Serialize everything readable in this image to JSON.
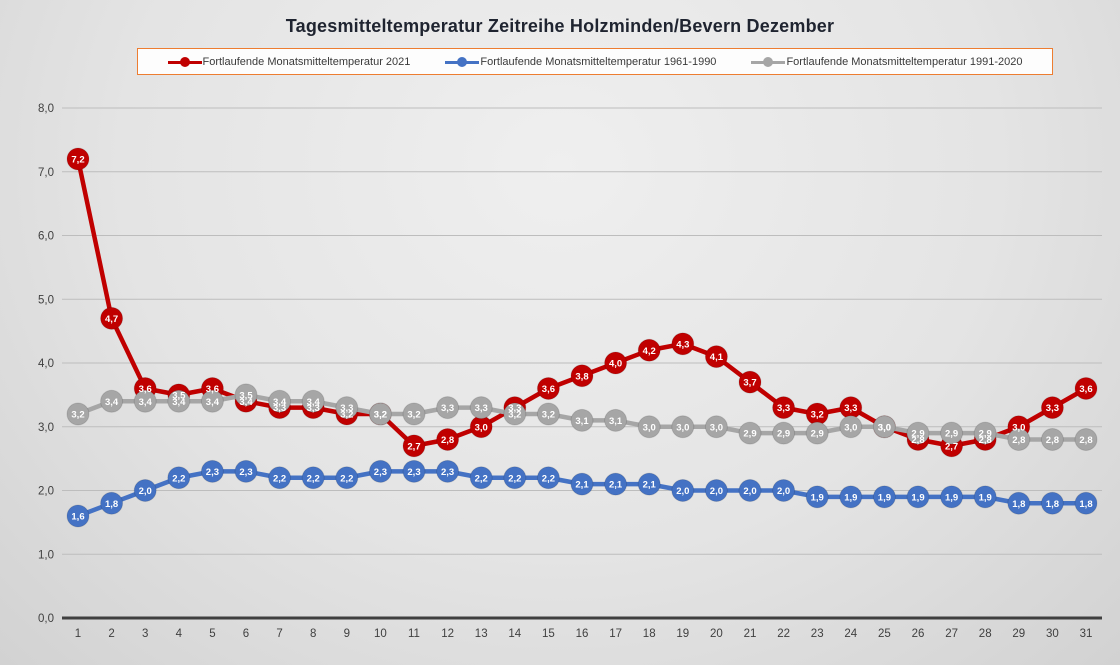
{
  "title": "Tagesmitteltemperatur Zeitreihe Holzminden/Bevern Dezember",
  "colors": {
    "series_2021": "#c00000",
    "series_1961_1990": "#4472c4",
    "series_1991_2020": "#a6a6a6",
    "legend_border": "#ed7d31",
    "axis_line": "#3f3f3f",
    "gridline": "#bdbdbd"
  },
  "chart_data": {
    "type": "line",
    "title": "Tagesmitteltemperatur Zeitreihe Holzminden/Bevern Dezember",
    "xlabel": "",
    "ylabel": "",
    "x": [
      1,
      2,
      3,
      4,
      5,
      6,
      7,
      8,
      9,
      10,
      11,
      12,
      13,
      14,
      15,
      16,
      17,
      18,
      19,
      20,
      21,
      22,
      23,
      24,
      25,
      26,
      27,
      28,
      29,
      30,
      31
    ],
    "ylim": [
      0,
      8
    ],
    "y_tick_labels": [
      "0,0",
      "1,0",
      "2,0",
      "3,0",
      "4,0",
      "5,0",
      "6,0",
      "7,0",
      "8,0"
    ],
    "grid": true,
    "legend_position": "top",
    "decimal_separator": ",",
    "marker": "circle-with-value-label",
    "series": [
      {
        "name": "Fortlaufende Monatsmitteltemperatur 2021",
        "color": "#c00000",
        "values": [
          7.2,
          4.7,
          3.6,
          3.5,
          3.6,
          3.4,
          3.3,
          3.3,
          3.2,
          3.2,
          2.7,
          2.8,
          3.0,
          3.3,
          3.6,
          3.8,
          4.0,
          4.2,
          4.3,
          4.1,
          3.7,
          3.3,
          3.2,
          3.3,
          3.0,
          2.8,
          2.7,
          2.8,
          3.0,
          3.3,
          3.6
        ]
      },
      {
        "name": "Fortlaufende Monatsmitteltemperatur 1961-1990",
        "color": "#4472c4",
        "values": [
          1.6,
          1.8,
          2.0,
          2.2,
          2.3,
          2.3,
          2.2,
          2.2,
          2.2,
          2.3,
          2.3,
          2.3,
          2.2,
          2.2,
          2.2,
          2.1,
          2.1,
          2.1,
          2.0,
          2.0,
          2.0,
          2.0,
          1.9,
          1.9,
          1.9,
          1.9,
          1.9,
          1.9,
          1.8,
          1.8,
          1.8
        ]
      },
      {
        "name": "Fortlaufende Monatsmitteltemperatur 1991-2020",
        "color": "#a6a6a6",
        "values": [
          3.2,
          3.4,
          3.4,
          3.4,
          3.4,
          3.5,
          3.4,
          3.4,
          3.3,
          3.2,
          3.2,
          3.3,
          3.3,
          3.2,
          3.2,
          3.1,
          3.1,
          3.0,
          3.0,
          3.0,
          2.9,
          2.9,
          2.9,
          3.0,
          3.0,
          2.9,
          2.9,
          2.9,
          2.8,
          2.8,
          2.8
        ]
      }
    ]
  }
}
